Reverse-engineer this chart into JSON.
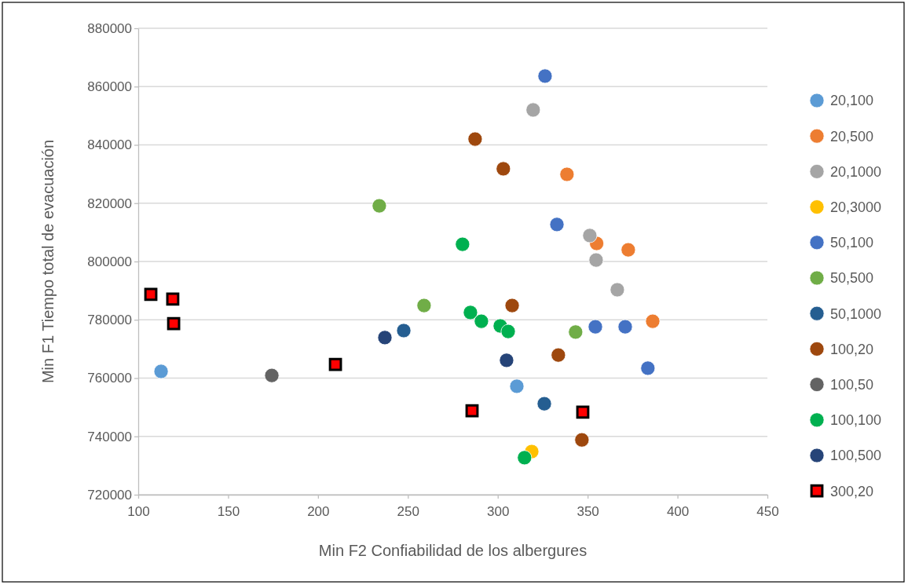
{
  "chart_data": {
    "type": "scatter",
    "xlabel": "Min F2 Confiabilidad de los albergures",
    "ylabel": "Min F1 Tiempo total de evacuación",
    "xlim": [
      100,
      450
    ],
    "xticks": [
      100,
      150,
      200,
      250,
      300,
      350,
      400,
      450
    ],
    "ylim": [
      720000,
      880000
    ],
    "yticks": [
      720000,
      740000,
      760000,
      780000,
      800000,
      820000,
      840000,
      860000,
      880000
    ],
    "grid": "y",
    "legend": "right",
    "marker": "circle",
    "series": [
      {
        "name": "20,100",
        "color": "#5b9bd5",
        "x": [
          112.7,
          310.6
        ],
        "values": [
          762300,
          757200
        ]
      },
      {
        "name": "20,500",
        "color": "#ed7d31",
        "x": [
          338.5,
          355.0,
          372.6,
          386.2
        ],
        "values": [
          829900,
          806200,
          804000,
          779500
        ]
      },
      {
        "name": "20,1000",
        "color": "#a5a5a5",
        "x": [
          319.7,
          351.2,
          354.7,
          366.5
        ],
        "values": [
          852000,
          808900,
          800500,
          790300
        ]
      },
      {
        "name": "20,3000",
        "color": "#ffc000",
        "x": [
          318.9
        ],
        "values": [
          734800
        ]
      },
      {
        "name": "50,100",
        "color": "#4472c4",
        "x": [
          326.3,
          332.9,
          354.3,
          370.9,
          383.5
        ],
        "values": [
          863600,
          812700,
          777600,
          777600,
          763400
        ]
      },
      {
        "name": "50,500",
        "color": "#70ad47",
        "x": [
          234.1,
          259.0,
          343.3
        ],
        "values": [
          819100,
          784900,
          775800
        ]
      },
      {
        "name": "50,1000",
        "color": "#255e91",
        "x": [
          247.7,
          325.9
        ],
        "values": [
          776300,
          751200
        ]
      },
      {
        "name": "100,20",
        "color": "#9e480e",
        "x": [
          287.4,
          303.1,
          308.0,
          333.7,
          346.8
        ],
        "values": [
          842000,
          831800,
          784900,
          767900,
          738800
        ]
      },
      {
        "name": "100,50",
        "color": "#636363",
        "x": [
          174.3
        ],
        "values": [
          760900
        ]
      },
      {
        "name": "100,100",
        "color": "#00b050",
        "x": [
          280.4,
          284.8,
          290.9,
          301.4,
          305.8,
          314.9
        ],
        "values": [
          805900,
          782500,
          779500,
          777900,
          776000,
          732700
        ]
      },
      {
        "name": "100,500",
        "color": "#264478",
        "x": [
          237.2,
          304.9
        ],
        "values": [
          773900,
          766100
        ]
      },
      {
        "name": "300,20",
        "color": "#ff0000",
        "marker": "square",
        "x": [
          107.0,
          119.2,
          119.7,
          209.7,
          285.7,
          347.3
        ],
        "values": [
          788700,
          787100,
          778700,
          764700,
          748800,
          748300
        ]
      }
    ]
  }
}
